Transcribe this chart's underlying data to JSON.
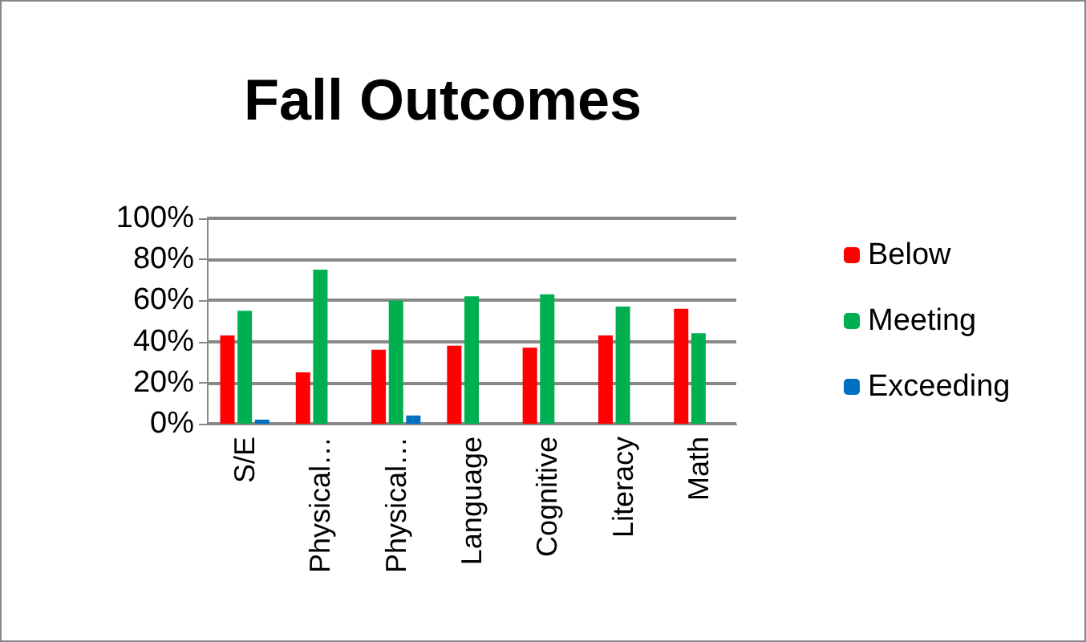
{
  "chart_data": {
    "type": "bar",
    "title": "Fall Outcomes",
    "categories": [
      "S/E",
      "Physical…",
      "Physical…",
      "Language",
      "Cognitive",
      "Literacy",
      "Math"
    ],
    "series": [
      {
        "name": "Below",
        "color": "#ff0000",
        "values": [
          43,
          25,
          36,
          38,
          37,
          43,
          56
        ]
      },
      {
        "name": "Meeting",
        "color": "#00b050",
        "values": [
          55,
          75,
          60,
          62,
          63,
          57,
          44
        ]
      },
      {
        "name": "Exceeding",
        "color": "#0070c0",
        "values": [
          2,
          0,
          4,
          0,
          0,
          0,
          0
        ]
      }
    ],
    "ylim": [
      0,
      100
    ],
    "yticks": [
      {
        "value": 0,
        "label": "0%"
      },
      {
        "value": 20,
        "label": "20%"
      },
      {
        "value": 40,
        "label": "40%"
      },
      {
        "value": 60,
        "label": "60%"
      },
      {
        "value": 80,
        "label": "80%"
      },
      {
        "value": 100,
        "label": "100%"
      }
    ],
    "grid": "y",
    "legend": "right"
  }
}
